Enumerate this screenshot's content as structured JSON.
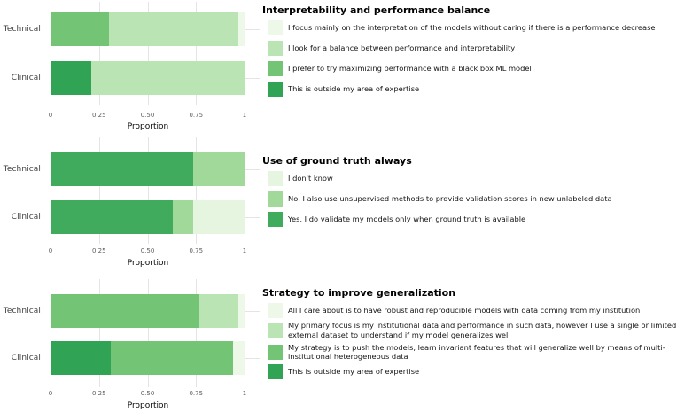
{
  "chart_data": [
    {
      "type": "bar",
      "stacked": "fill",
      "orientation": "horizontal",
      "title": "Interpretability and performance balance",
      "xlabel": "Proportion",
      "xlim": [
        0,
        1
      ],
      "xticks": [
        0,
        0.25,
        0.5,
        0.75,
        1
      ],
      "xtick_labels": [
        "0",
        "0.25",
        "0.50",
        "0.75",
        "1"
      ],
      "categories": [
        "Technical",
        "Clinical"
      ],
      "legend_position": "right",
      "grid": true,
      "options": [
        {
          "label": "I focus mainly on the interpretation of the models without caring if there is a performance decrease",
          "color": "#edf8e9"
        },
        {
          "label": "I look for a balance between performance and interpretability",
          "color": "#bae4b3"
        },
        {
          "label": "I prefer to try maximizing performance with a black box ML model",
          "color": "#74c476"
        },
        {
          "label": "This is outside my area of expertise",
          "color": "#31a354"
        }
      ],
      "rows": [
        {
          "category": "Technical",
          "segments": [
            {
              "option_index": 2,
              "value": 0.3
            },
            {
              "option_index": 1,
              "value": 0.67
            },
            {
              "option_index": 0,
              "value": 0.03
            }
          ]
        },
        {
          "category": "Clinical",
          "segments": [
            {
              "option_index": 3,
              "value": 0.21
            },
            {
              "option_index": 1,
              "value": 0.79
            }
          ]
        }
      ]
    },
    {
      "type": "bar",
      "stacked": "fill",
      "orientation": "horizontal",
      "title": "Use of ground truth always",
      "xlabel": "Proportion",
      "xlim": [
        0,
        1
      ],
      "xticks": [
        0,
        0.25,
        0.5,
        0.75,
        1
      ],
      "xtick_labels": [
        "0",
        "0.25",
        "0.50",
        "0.75",
        "1"
      ],
      "categories": [
        "Technical",
        "Clinical"
      ],
      "legend_position": "right",
      "grid": true,
      "options": [
        {
          "label": "I don't know",
          "color": "#e5f5e0"
        },
        {
          "label": "No, I also use unsupervised methods to provide validation scores in new unlabeled data",
          "color": "#a1d99b"
        },
        {
          "label": "Yes, I do validate my models only when ground truth is available",
          "color": "#41ab5d"
        }
      ],
      "rows": [
        {
          "category": "Technical",
          "segments": [
            {
              "option_index": 2,
              "value": 0.735
            },
            {
              "option_index": 1,
              "value": 0.265
            }
          ]
        },
        {
          "category": "Clinical",
          "segments": [
            {
              "option_index": 2,
              "value": 0.63
            },
            {
              "option_index": 1,
              "value": 0.105
            },
            {
              "option_index": 0,
              "value": 0.265
            }
          ]
        }
      ]
    },
    {
      "type": "bar",
      "stacked": "fill",
      "orientation": "horizontal",
      "title": "Strategy to improve generalization",
      "xlabel": "Proportion",
      "xlim": [
        0,
        1
      ],
      "xticks": [
        0,
        0.25,
        0.5,
        0.75,
        1
      ],
      "xtick_labels": [
        "0",
        "0.25",
        "0.50",
        "0.75",
        "1"
      ],
      "categories": [
        "Technical",
        "Clinical"
      ],
      "legend_position": "right",
      "grid": true,
      "options": [
        {
          "label": "All I care about is to have robust and reproducible models with data coming from my institution",
          "color": "#edf8e9"
        },
        {
          "label": "My primary focus is my institutional data and performance in such data, however I use a single or limited external dataset to understand if my model generalizes well",
          "color": "#bae4b3"
        },
        {
          "label": "My strategy is to push the models, learn invariant features that will generalize well by means of multi-institutional heterogeneous data",
          "color": "#74c476"
        },
        {
          "label": "This is outside my area of expertise",
          "color": "#31a354"
        }
      ],
      "rows": [
        {
          "category": "Technical",
          "segments": [
            {
              "option_index": 2,
              "value": 0.765
            },
            {
              "option_index": 1,
              "value": 0.205
            },
            {
              "option_index": 0,
              "value": 0.03
            }
          ]
        },
        {
          "category": "Clinical",
          "segments": [
            {
              "option_index": 3,
              "value": 0.31
            },
            {
              "option_index": 2,
              "value": 0.63
            },
            {
              "option_index": 0,
              "value": 0.06
            }
          ]
        }
      ]
    }
  ]
}
